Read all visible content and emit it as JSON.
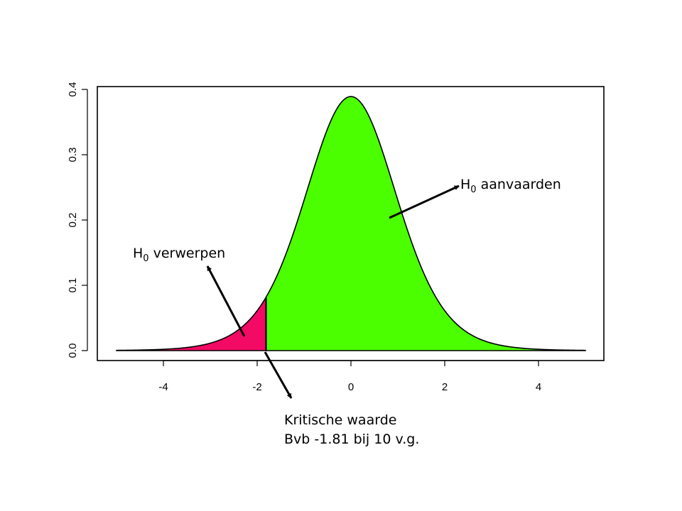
{
  "chart_data": {
    "type": "area",
    "distribution": "Student t",
    "degrees_of_freedom": 10,
    "critical_value": -1.81,
    "xlim": [
      -5,
      5
    ],
    "ylim": [
      0,
      0.4
    ],
    "x_ticks": [
      "-4",
      "-2",
      "0",
      "2",
      "4"
    ],
    "y_ticks": [
      "0.0",
      "0.1",
      "0.2",
      "0.3",
      "0.4"
    ],
    "regions": [
      {
        "label_main": "H",
        "label_sub": "0",
        "label_rest": " verwerpen",
        "x_from": -5,
        "x_to": -1.81,
        "color": "#F20A64"
      },
      {
        "label_main": "H",
        "label_sub": "0",
        "label_rest": " aanvaarden",
        "x_from": -1.81,
        "x_to": 5,
        "color": "#4CFF00"
      }
    ],
    "critical_label_line1": "Kritische waarde",
    "critical_label_line2": "Bvb -1.81 bij 10 v.g.",
    "grid": false,
    "legend": "none"
  }
}
